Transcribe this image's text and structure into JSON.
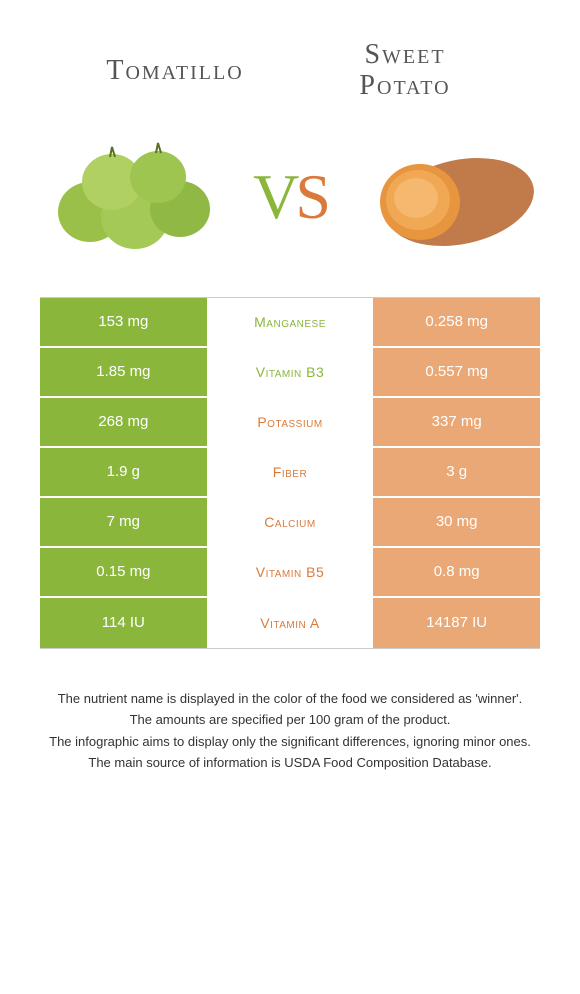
{
  "food_left": {
    "name": "Tomatillo",
    "color": "#8bb63c"
  },
  "food_right": {
    "name": "Sweet Potato",
    "name_line1": "Sweet",
    "name_line2": "Potato",
    "color": "#d97a3a"
  },
  "vs_text": {
    "v": "V",
    "s": "S"
  },
  "colors": {
    "left_cell": "#8bb63c",
    "right_cell": "#eaa877",
    "winner_left": "#8bb63c",
    "winner_right": "#d97a3a"
  },
  "rows": [
    {
      "left": "153 mg",
      "nutrient": "Manganese",
      "right": "0.258 mg",
      "winner": "left"
    },
    {
      "left": "1.85 mg",
      "nutrient": "Vitamin B3",
      "right": "0.557 mg",
      "winner": "left"
    },
    {
      "left": "268 mg",
      "nutrient": "Potassium",
      "right": "337 mg",
      "winner": "right"
    },
    {
      "left": "1.9 g",
      "nutrient": "Fiber",
      "right": "3 g",
      "winner": "right"
    },
    {
      "left": "7 mg",
      "nutrient": "Calcium",
      "right": "30 mg",
      "winner": "right"
    },
    {
      "left": "0.15 mg",
      "nutrient": "Vitamin B5",
      "right": "0.8 mg",
      "winner": "right"
    },
    {
      "left": "114 IU",
      "nutrient": "Vitamin A",
      "right": "14187 IU",
      "winner": "right"
    }
  ],
  "footnotes": [
    "The nutrient name is displayed in the color of the food we considered as 'winner'.",
    "The amounts are specified per 100 gram of the product.",
    "The infographic aims to display only the significant differences, ignoring minor ones.",
    "The main source of information is USDA Food Composition Database."
  ]
}
